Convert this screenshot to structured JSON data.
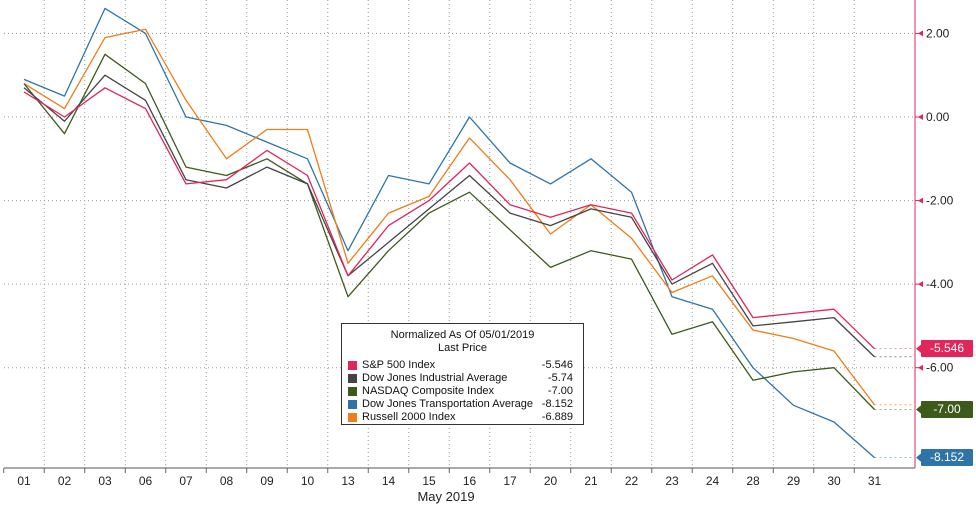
{
  "chart_data": {
    "type": "line",
    "xlabel": "May 2019",
    "x_ticks": [
      "01",
      "02",
      "03",
      "06",
      "07",
      "08",
      "09",
      "10",
      "13",
      "14",
      "15",
      "16",
      "17",
      "20",
      "21",
      "22",
      "23",
      "24",
      "28",
      "29",
      "30",
      "31"
    ],
    "y_ticks": [
      "2.00",
      "0.00",
      "-2.00",
      "-4.00",
      "-6.00"
    ],
    "ylim": [
      -8.4,
      2.8
    ],
    "grid": true,
    "legend": {
      "title": "Normalized As Of 05/01/2019",
      "subtitle": "Last Price",
      "placement": "bottom-center"
    },
    "series": [
      {
        "name": "S&P 500 Index",
        "color": "#e0265a",
        "last": "-5.546",
        "values": [
          0.6,
          0.0,
          0.7,
          0.2,
          -1.6,
          -1.5,
          -0.8,
          -1.4,
          -3.8,
          -2.6,
          -2.0,
          -1.1,
          -2.1,
          -2.4,
          -2.1,
          -2.3,
          -3.9,
          -3.3,
          -4.8,
          -4.7,
          -4.6,
          -5.546
        ]
      },
      {
        "name": "Dow Jones Industrial Average",
        "color": "#444444",
        "last": "-5.74",
        "values": [
          0.7,
          -0.1,
          1.0,
          0.4,
          -1.5,
          -1.7,
          -1.2,
          -1.6,
          -3.8,
          -3.0,
          -2.2,
          -1.4,
          -2.3,
          -2.6,
          -2.2,
          -2.4,
          -4.0,
          -3.5,
          -5.0,
          -4.9,
          -4.8,
          -5.74
        ]
      },
      {
        "name": "NASDAQ Composite Index",
        "color": "#3d5a1a",
        "last": "-7.00",
        "values": [
          0.8,
          -0.4,
          1.5,
          0.8,
          -1.2,
          -1.4,
          -1.0,
          -1.6,
          -4.3,
          -3.2,
          -2.3,
          -1.8,
          -2.7,
          -3.6,
          -3.2,
          -3.4,
          -5.2,
          -4.9,
          -6.3,
          -6.1,
          -6.0,
          -7.0
        ]
      },
      {
        "name": "Dow Jones Transportation Average",
        "color": "#2f74a8",
        "last": "-8.152",
        "values": [
          0.9,
          0.5,
          2.6,
          2.0,
          0.0,
          -0.2,
          -0.6,
          -1.0,
          -3.2,
          -1.4,
          -1.6,
          0.0,
          -1.1,
          -1.6,
          -1.0,
          -1.8,
          -4.3,
          -4.6,
          -6.0,
          -6.9,
          -7.3,
          -8.152
        ]
      },
      {
        "name": "Russell 2000 Index",
        "color": "#f07d1a",
        "last": "-6.889",
        "values": [
          0.8,
          0.2,
          1.9,
          2.1,
          0.4,
          -1.0,
          -0.3,
          -0.3,
          -3.5,
          -2.3,
          -1.9,
          -0.5,
          -1.5,
          -2.8,
          -2.1,
          -2.9,
          -4.2,
          -3.8,
          -5.1,
          -5.3,
          -5.6,
          -6.889
        ]
      }
    ],
    "last_tags": [
      {
        "text": "-5.546",
        "color": "#e0265a",
        "value": -5.546
      },
      {
        "text": "-7.00",
        "color": "#3d5a1a",
        "value": -7.0
      },
      {
        "text": "-8.152",
        "color": "#2f74a8",
        "value": -8.152
      }
    ]
  }
}
